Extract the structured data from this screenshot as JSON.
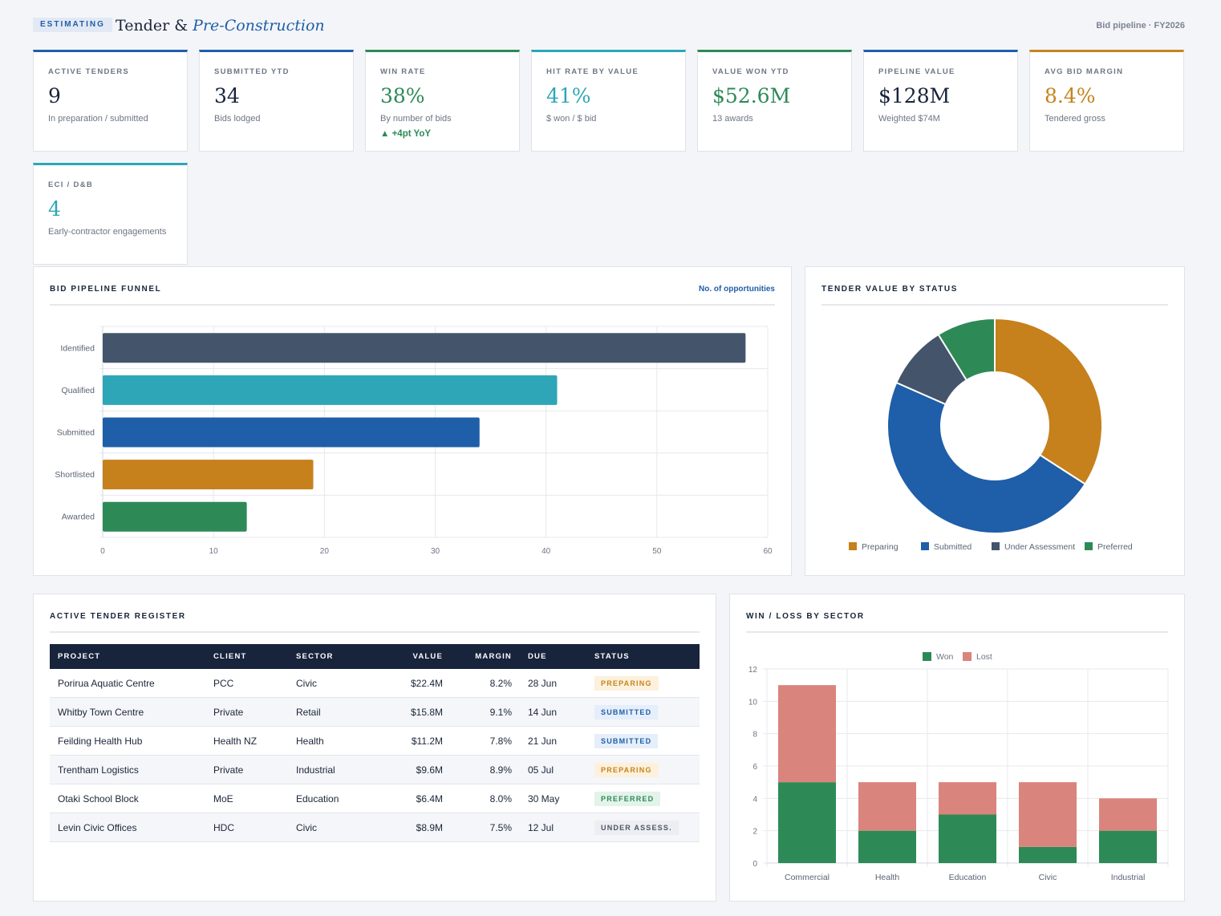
{
  "header": {
    "pill": "ESTIMATING",
    "title_main": "Tender &",
    "title_em": "Pre-Construction",
    "meta": "Bid pipeline · FY2026"
  },
  "kpis": [
    {
      "label": "ACTIVE TENDERS",
      "value": "9",
      "sub": "In preparation / submitted",
      "accent": "#1f5ea8",
      "value_color": "#18243a"
    },
    {
      "label": "SUBMITTED YTD",
      "value": "34",
      "sub": "Bids lodged",
      "accent": "#1f5ea8",
      "value_color": "#18243a"
    },
    {
      "label": "WIN RATE",
      "value": "38%",
      "sub": "By number of bids",
      "delta": "▲ +4pt YoY",
      "accent": "#2d8a57",
      "value_color": "#2d8a57"
    },
    {
      "label": "HIT RATE BY VALUE",
      "value": "41%",
      "sub": "$ won / $ bid",
      "accent": "#2ea6b7",
      "value_color": "#2ea6b7"
    },
    {
      "label": "VALUE WON YTD",
      "value": "$52.6M",
      "sub": "13 awards",
      "accent": "#2d8a57",
      "value_color": "#2d8a57"
    },
    {
      "label": "PIPELINE VALUE",
      "value": "$128M",
      "sub": "Weighted $74M",
      "accent": "#1f5ea8",
      "value_color": "#18243a"
    },
    {
      "label": "AVG BID MARGIN",
      "value": "8.4%",
      "sub": "Tendered gross",
      "accent": "#c6841e",
      "value_color": "#c6841e"
    },
    {
      "label": "ECI / D&B",
      "value": "4",
      "sub": "Early-contractor engagements",
      "accent": "#2ea6b7",
      "value_color": "#2ea6b7"
    }
  ],
  "funnel": {
    "title": "BID PIPELINE FUNNEL",
    "meta": "No. of opportunities"
  },
  "donut": {
    "title": "TENDER VALUE BY STATUS"
  },
  "register": {
    "title": "ACTIVE TENDER REGISTER",
    "columns": [
      "PROJECT",
      "CLIENT",
      "SECTOR",
      "VALUE",
      "MARGIN",
      "DUE",
      "STATUS"
    ],
    "rows": [
      {
        "project": "Porirua Aquatic Centre",
        "client": "PCC",
        "sector": "Civic",
        "value": "$22.4M",
        "margin": "8.2%",
        "due": "28 Jun",
        "status": "PREPARING",
        "kind": "preparing"
      },
      {
        "project": "Whitby Town Centre",
        "client": "Private",
        "sector": "Retail",
        "value": "$15.8M",
        "margin": "9.1%",
        "due": "14 Jun",
        "status": "SUBMITTED",
        "kind": "submitted"
      },
      {
        "project": "Feilding Health Hub",
        "client": "Health NZ",
        "sector": "Health",
        "value": "$11.2M",
        "margin": "7.8%",
        "due": "21 Jun",
        "status": "SUBMITTED",
        "kind": "submitted"
      },
      {
        "project": "Trentham Logistics",
        "client": "Private",
        "sector": "Industrial",
        "value": "$9.6M",
        "margin": "8.9%",
        "due": "05 Jul",
        "status": "PREPARING",
        "kind": "preparing"
      },
      {
        "project": "Otaki School Block",
        "client": "MoE",
        "sector": "Education",
        "value": "$6.4M",
        "margin": "8.0%",
        "due": "30 May",
        "status": "PREFERRED",
        "kind": "preferred"
      },
      {
        "project": "Levin Civic Offices",
        "client": "HDC",
        "sector": "Civic",
        "value": "$8.9M",
        "margin": "7.5%",
        "due": "12 Jul",
        "status": "UNDER ASSESS.",
        "kind": "under"
      }
    ]
  },
  "winloss": {
    "title": "WIN / LOSS BY SECTOR"
  },
  "chart_data": [
    {
      "type": "bar",
      "orientation": "horizontal",
      "title": "BID PIPELINE FUNNEL",
      "categories": [
        "Identified",
        "Qualified",
        "Submitted",
        "Shortlisted",
        "Awarded"
      ],
      "values": [
        58,
        41,
        34,
        19,
        13
      ],
      "colors": [
        "#44546b",
        "#2ea6b7",
        "#1f5ea8",
        "#c6801c",
        "#2d8a57"
      ],
      "xlim": [
        0,
        60
      ],
      "xticks": [
        0,
        10,
        20,
        30,
        40,
        50,
        60
      ],
      "grid": true
    },
    {
      "type": "pie",
      "donut": true,
      "title": "TENDER VALUE BY STATUS",
      "labels": [
        "Preparing",
        "Submitted",
        "Under Assessment",
        "Preferred"
      ],
      "values": [
        34.1,
        47.5,
        9.6,
        8.8
      ],
      "colors": [
        "#c6801c",
        "#1f5ea8",
        "#44546b",
        "#2d8a57"
      ],
      "legend": "bottom"
    },
    {
      "type": "bar",
      "stacked": true,
      "title": "WIN / LOSS BY SECTOR",
      "categories": [
        "Commercial",
        "Health",
        "Education",
        "Civic",
        "Industrial"
      ],
      "series": [
        {
          "name": "Won",
          "values": [
            5,
            2,
            3,
            1,
            2
          ],
          "color": "#2d8a57"
        },
        {
          "name": "Lost",
          "values": [
            6,
            3,
            2,
            4,
            2
          ],
          "color": "#d9847c"
        }
      ],
      "ylim": [
        0,
        12
      ],
      "yticks": [
        0,
        2,
        4,
        6,
        8,
        10,
        12
      ],
      "legend": "top",
      "grid": true
    }
  ]
}
